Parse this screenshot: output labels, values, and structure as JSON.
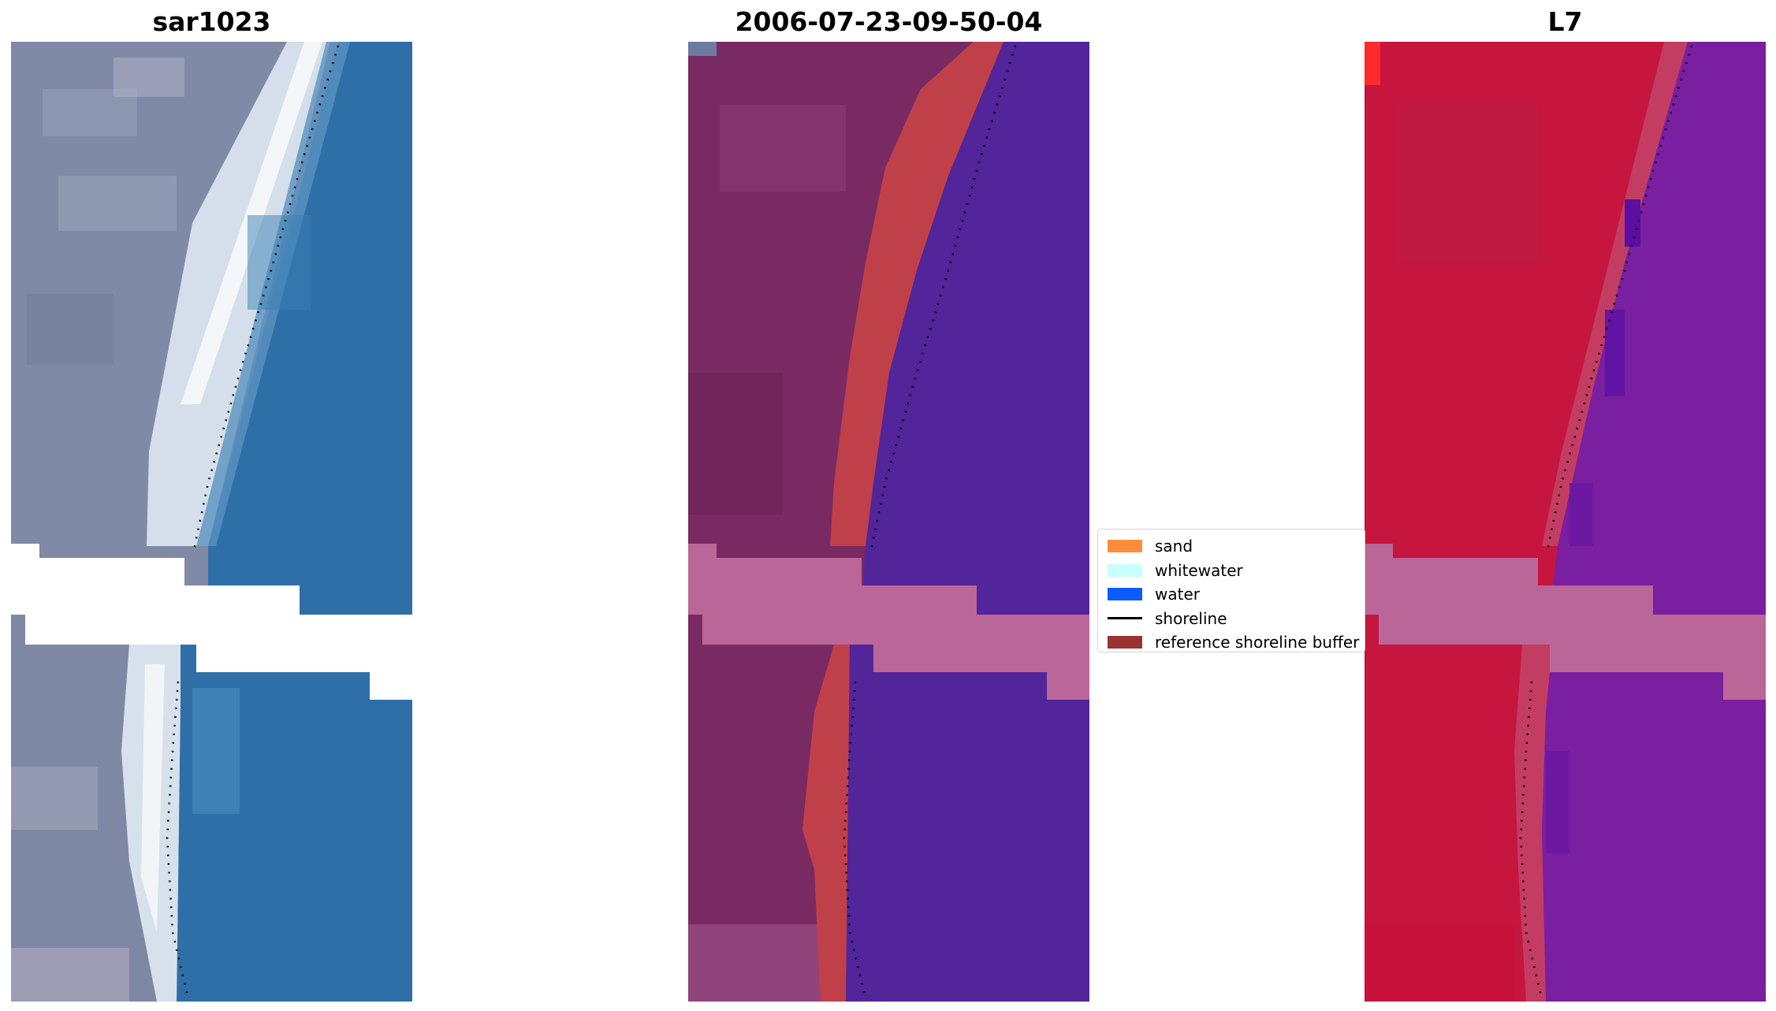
{
  "panels": [
    {
      "title": "sar1023"
    },
    {
      "title": "2006-07-23-09-50-04"
    },
    {
      "title": "L7"
    }
  ],
  "legend": {
    "items": [
      {
        "label": "sand",
        "color": "#ff8c3a",
        "kind": "patch"
      },
      {
        "label": "whitewater",
        "color": "#c8ffff",
        "kind": "patch"
      },
      {
        "label": "water",
        "color": "#0a5cff",
        "kind": "patch"
      },
      {
        "label": "shoreline",
        "color": "#000000",
        "kind": "line"
      },
      {
        "label": "reference shoreline buffer",
        "color": "#993333",
        "kind": "patch"
      }
    ]
  },
  "colors": {
    "rgb_land": "#7f8aa6",
    "rgb_sand": "#e6eef5",
    "rgb_water": "#2f6ea8",
    "class_land": "#7a2a63",
    "class_buffer": "#c0404a",
    "class_water": "#52259a",
    "class_nodata": "#bb6699",
    "mndwi_land": "#c6153f",
    "mndwi_water": "#7a1fa0",
    "mndwi_nodata": "#bb6699"
  }
}
